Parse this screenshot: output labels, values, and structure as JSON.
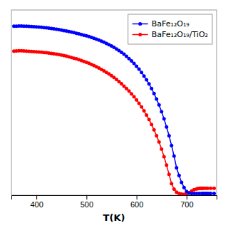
{
  "chart_data": {
    "type": "line",
    "xlabel": "T(K)",
    "xlim": [
      350,
      760
    ],
    "xticks": [
      400,
      500,
      600,
      700
    ],
    "ylim": [
      0.0,
      1.08
    ],
    "tick_labels": "x",
    "grid": false,
    "legend": "upper right",
    "series": [
      {
        "name": "BaFe₁₂O₁₉",
        "color": "#0000FF",
        "marker": "circle",
        "line_style": "solid",
        "x": [
          355,
          360,
          365,
          370,
          375,
          380,
          385,
          390,
          395,
          400,
          405,
          410,
          415,
          420,
          425,
          430,
          435,
          440,
          445,
          450,
          455,
          460,
          465,
          470,
          475,
          480,
          485,
          490,
          495,
          500,
          505,
          510,
          515,
          520,
          525,
          530,
          535,
          540,
          545,
          550,
          555,
          560,
          565,
          570,
          575,
          580,
          585,
          590,
          595,
          600,
          605,
          610,
          615,
          620,
          625,
          630,
          635,
          640,
          645,
          650,
          655,
          660,
          665,
          670,
          675,
          680,
          685,
          690,
          695,
          700,
          705,
          710,
          715,
          720,
          725,
          730,
          732,
          734,
          736,
          738,
          740,
          742,
          744,
          748,
          755
        ],
        "values": [
          0.985,
          0.986,
          0.987,
          0.987,
          0.986,
          0.985,
          0.984,
          0.983,
          0.982,
          0.981,
          0.98,
          0.979,
          0.977,
          0.976,
          0.974,
          0.972,
          0.97,
          0.968,
          0.966,
          0.963,
          0.96,
          0.957,
          0.954,
          0.951,
          0.948,
          0.944,
          0.941,
          0.937,
          0.933,
          0.929,
          0.925,
          0.92,
          0.915,
          0.91,
          0.904,
          0.898,
          0.892,
          0.885,
          0.878,
          0.87,
          0.862,
          0.853,
          0.843,
          0.833,
          0.822,
          0.81,
          0.797,
          0.783,
          0.768,
          0.752,
          0.735,
          0.716,
          0.695,
          0.673,
          0.649,
          0.622,
          0.593,
          0.561,
          0.526,
          0.487,
          0.445,
          0.398,
          0.347,
          0.29,
          0.228,
          0.16,
          0.115,
          0.075,
          0.045,
          0.022,
          0.012,
          0.01,
          0.01,
          0.01,
          0.01,
          0.01,
          0.01,
          0.01,
          0.01,
          0.01,
          0.01,
          0.01,
          0.01,
          0.01,
          0.01
        ]
      },
      {
        "name": "BaFe₁₂O₁₉/TiO₂",
        "color": "#FF0000",
        "marker": "circle",
        "line_style": "solid",
        "x": [
          355,
          360,
          365,
          370,
          375,
          380,
          385,
          390,
          395,
          400,
          405,
          410,
          415,
          420,
          425,
          430,
          435,
          440,
          445,
          450,
          455,
          460,
          465,
          470,
          475,
          480,
          485,
          490,
          495,
          500,
          505,
          510,
          515,
          520,
          525,
          530,
          535,
          540,
          545,
          550,
          555,
          560,
          565,
          570,
          575,
          580,
          585,
          590,
          595,
          600,
          605,
          610,
          615,
          620,
          625,
          630,
          635,
          640,
          645,
          650,
          655,
          660,
          665,
          670,
          675,
          680,
          685,
          690,
          695,
          700,
          705,
          710,
          715,
          720,
          722,
          724,
          726,
          728,
          730,
          732,
          734,
          738,
          742,
          748,
          755
        ],
        "values": [
          0.84,
          0.841,
          0.842,
          0.842,
          0.841,
          0.84,
          0.839,
          0.838,
          0.837,
          0.836,
          0.835,
          0.834,
          0.832,
          0.831,
          0.829,
          0.827,
          0.825,
          0.822,
          0.82,
          0.817,
          0.814,
          0.811,
          0.807,
          0.803,
          0.799,
          0.795,
          0.79,
          0.785,
          0.78,
          0.775,
          0.769,
          0.762,
          0.756,
          0.749,
          0.741,
          0.733,
          0.725,
          0.716,
          0.707,
          0.697,
          0.686,
          0.675,
          0.663,
          0.65,
          0.636,
          0.622,
          0.607,
          0.591,
          0.574,
          0.556,
          0.536,
          0.515,
          0.492,
          0.467,
          0.441,
          0.412,
          0.381,
          0.347,
          0.31,
          0.269,
          0.224,
          0.175,
          0.122,
          0.067,
          0.035,
          0.018,
          0.01,
          0.007,
          0.005,
          0.008,
          0.015,
          0.025,
          0.032,
          0.036,
          0.038,
          0.039,
          0.04,
          0.04,
          0.04,
          0.04,
          0.04,
          0.04,
          0.04,
          0.04,
          0.04
        ]
      }
    ]
  }
}
